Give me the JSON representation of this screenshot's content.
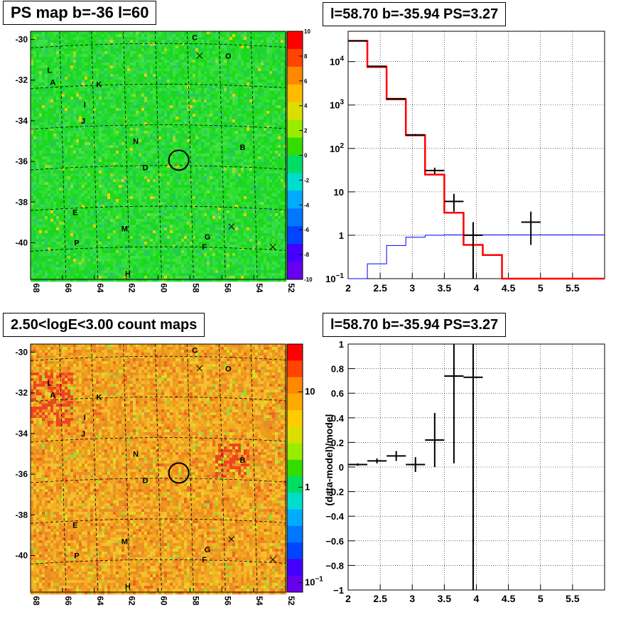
{
  "panels": {
    "top_left": {
      "title": "PS map b=-36 l=60"
    },
    "top_right": {
      "title": "l=58.70 b=-35.94 PS=3.27"
    },
    "bottom_left": {
      "title": "2.50<logE<3.00 count maps"
    },
    "bottom_right": {
      "title": "l=58.70 b=-35.94 PS=3.27"
    }
  },
  "chart_data": [
    {
      "type": "heatmap",
      "title": "PS map b=-36 l=60",
      "x_ticks": [
        "68",
        "66",
        "64",
        "62",
        "60",
        "58",
        "56",
        "54",
        "52"
      ],
      "y_ticks": [
        "-30",
        "-32",
        "-34",
        "-36",
        "-38",
        "-40"
      ],
      "xlim": [
        68,
        52
      ],
      "ylim": [
        -41.8,
        -29.6
      ],
      "colorbar": {
        "ticks": [
          "10",
          "8",
          "6",
          "4",
          "2",
          "0",
          "-2",
          "-4",
          "-6",
          "-8",
          "-10"
        ],
        "range": [
          -10,
          10
        ]
      },
      "dominant_color": "#22dd22",
      "source_labels": [
        {
          "label": "L",
          "l": 66.8,
          "b": -31.5
        },
        {
          "label": "A",
          "l": 66.6,
          "b": -32.1
        },
        {
          "label": "K",
          "l": 63.7,
          "b": -32.2
        },
        {
          "label": "I",
          "l": 64.6,
          "b": -33.2
        },
        {
          "label": "J",
          "l": 64.7,
          "b": -34.0
        },
        {
          "label": "C",
          "l": 57.7,
          "b": -29.9
        },
        {
          "label": "O",
          "l": 55.6,
          "b": -30.8
        },
        {
          "label": "N",
          "l": 61.4,
          "b": -35.0
        },
        {
          "label": "D",
          "l": 60.8,
          "b": -36.3
        },
        {
          "label": "B",
          "l": 54.7,
          "b": -35.3
        },
        {
          "label": "E",
          "l": 65.2,
          "b": -38.5
        },
        {
          "label": "M",
          "l": 62.1,
          "b": -39.3
        },
        {
          "label": "P",
          "l": 65.1,
          "b": -40.0
        },
        {
          "label": "G",
          "l": 56.9,
          "b": -39.7
        },
        {
          "label": "F",
          "l": 57.1,
          "b": -40.2
        },
        {
          "label": "H",
          "l": 61.9,
          "b": -41.5
        }
      ],
      "crosses": [
        {
          "l": 57.4,
          "b": -30.8
        },
        {
          "l": 55.4,
          "b": -39.2
        },
        {
          "l": 52.8,
          "b": -40.2
        }
      ],
      "circle": {
        "l": 58.7,
        "b": -35.94
      }
    },
    {
      "type": "line",
      "title": "l=58.70 b=-35.94 PS=3.27",
      "x_ticks": [
        "2",
        "2.5",
        "3",
        "3.5",
        "4",
        "4.5",
        "5",
        "5.5"
      ],
      "xlim": [
        2,
        6
      ],
      "y_scale": "log",
      "ylim": [
        0.1,
        50000
      ],
      "y_ticks": [
        {
          "base": "10",
          "exp": "4",
          "v": 10000
        },
        {
          "base": "10",
          "exp": "3",
          "v": 1000
        },
        {
          "base": "10",
          "exp": "2",
          "v": 100
        },
        {
          "base": "10",
          "exp": "",
          "v": 10
        },
        {
          "base": "1",
          "exp": "",
          "v": 1
        },
        {
          "base": "10",
          "exp": "−1",
          "v": 0.1
        }
      ],
      "grid": true,
      "series": [
        {
          "color": "#ff0000",
          "style": "step",
          "edges": [
            2,
            2.3,
            2.6,
            2.9,
            3.2,
            3.5,
            3.8,
            4.1,
            4.4,
            6
          ],
          "values": [
            30000,
            7500,
            1350,
            200,
            25,
            3.3,
            0.6,
            0.35,
            0.1
          ]
        },
        {
          "color": "#0000ff",
          "style": "step",
          "edges": [
            2,
            2.3,
            2.6,
            2.9,
            3.2,
            3.5,
            6
          ],
          "values": [
            0.1,
            0.22,
            0.58,
            0.9,
            1,
            1.02
          ]
        },
        {
          "color": "#000000",
          "style": "errorbars",
          "points": [
            {
              "x": 2.15,
              "y": 30000,
              "xerr": 0.15,
              "ylo": 29500,
              "yhi": 30500
            },
            {
              "x": 2.45,
              "y": 7800,
              "xerr": 0.15,
              "ylo": 7650,
              "yhi": 7950
            },
            {
              "x": 2.75,
              "y": 1400,
              "xerr": 0.15,
              "ylo": 1360,
              "yhi": 1440
            },
            {
              "x": 3.05,
              "y": 205,
              "xerr": 0.15,
              "ylo": 195,
              "yhi": 215
            },
            {
              "x": 3.35,
              "y": 31,
              "xerr": 0.15,
              "ylo": 26,
              "yhi": 36
            },
            {
              "x": 3.65,
              "y": 6,
              "xerr": 0.15,
              "ylo": 3.5,
              "yhi": 9
            },
            {
              "x": 3.95,
              "y": 1,
              "xerr": 0.15,
              "ylo": 0.1,
              "yhi": 2
            },
            {
              "x": 4.85,
              "y": 2,
              "xerr": 0.15,
              "ylo": 0.6,
              "yhi": 3.5
            }
          ]
        }
      ]
    },
    {
      "type": "heatmap",
      "title": "2.50<logE<3.00 count maps",
      "x_ticks": [
        "68",
        "66",
        "64",
        "62",
        "60",
        "58",
        "56",
        "54",
        "52"
      ],
      "y_ticks": [
        "-30",
        "-32",
        "-34",
        "-36",
        "-38",
        "-40"
      ],
      "xlim": [
        68,
        52
      ],
      "ylim": [
        -41.8,
        -29.6
      ],
      "colorbar": {
        "ticks": [
          {
            "base": "10",
            "exp": "",
            "v": 10
          },
          {
            "base": "1",
            "exp": "",
            "v": 1
          },
          {
            "base": "10",
            "exp": "−1",
            "v": 0.1
          }
        ],
        "scale": "log"
      },
      "dominant_color": "#f0a020",
      "source_labels": [
        {
          "label": "L",
          "l": 66.8,
          "b": -31.5
        },
        {
          "label": "A",
          "l": 66.6,
          "b": -32.1
        },
        {
          "label": "K",
          "l": 63.7,
          "b": -32.2
        },
        {
          "label": "I",
          "l": 64.6,
          "b": -33.2
        },
        {
          "label": "J",
          "l": 64.7,
          "b": -34.0
        },
        {
          "label": "C",
          "l": 57.7,
          "b": -29.9
        },
        {
          "label": "O",
          "l": 55.6,
          "b": -30.8
        },
        {
          "label": "N",
          "l": 61.4,
          "b": -35.0
        },
        {
          "label": "D",
          "l": 60.8,
          "b": -36.3
        },
        {
          "label": "B",
          "l": 54.7,
          "b": -35.3
        },
        {
          "label": "E",
          "l": 65.2,
          "b": -38.5
        },
        {
          "label": "M",
          "l": 62.1,
          "b": -39.3
        },
        {
          "label": "P",
          "l": 65.1,
          "b": -40.0
        },
        {
          "label": "G",
          "l": 56.9,
          "b": -39.7
        },
        {
          "label": "F",
          "l": 57.1,
          "b": -40.2
        },
        {
          "label": "H",
          "l": 61.9,
          "b": -41.5
        }
      ],
      "crosses": [
        {
          "l": 57.4,
          "b": -30.8
        },
        {
          "l": 55.4,
          "b": -39.2
        },
        {
          "l": 52.8,
          "b": -40.2
        }
      ],
      "circle": {
        "l": 58.7,
        "b": -35.94
      }
    },
    {
      "type": "scatter",
      "title": "l=58.70 b=-35.94 PS=3.27",
      "ylabel": "(data-model)/model",
      "x_ticks": [
        "2",
        "2.5",
        "3",
        "3.5",
        "4",
        "4.5",
        "5",
        "5.5"
      ],
      "xlim": [
        2,
        6
      ],
      "ylim": [
        -1,
        1
      ],
      "y_ticks": [
        "1",
        "0.8",
        "0.6",
        "0.4",
        "0.2",
        "0",
        "−0.2",
        "−0.4",
        "−0.6",
        "−0.8",
        "−1"
      ],
      "grid": true,
      "points": [
        {
          "x": 2.15,
          "y": 0.02,
          "xerr": 0.15,
          "ylo": 0.01,
          "yhi": 0.03
        },
        {
          "x": 2.45,
          "y": 0.05,
          "xerr": 0.15,
          "ylo": 0.03,
          "yhi": 0.07
        },
        {
          "x": 2.75,
          "y": 0.09,
          "xerr": 0.15,
          "ylo": 0.05,
          "yhi": 0.13
        },
        {
          "x": 3.05,
          "y": 0.02,
          "xerr": 0.15,
          "ylo": -0.04,
          "yhi": 0.08
        },
        {
          "x": 3.35,
          "y": 0.22,
          "xerr": 0.15,
          "ylo": 0.0,
          "yhi": 0.44
        },
        {
          "x": 3.65,
          "y": 0.74,
          "xerr": 0.15,
          "ylo": 0.03,
          "yhi": 1.0
        },
        {
          "x": 3.95,
          "y": 0.73,
          "xerr": 0.15,
          "ylo": -1.0,
          "yhi": 1.0
        }
      ]
    }
  ]
}
